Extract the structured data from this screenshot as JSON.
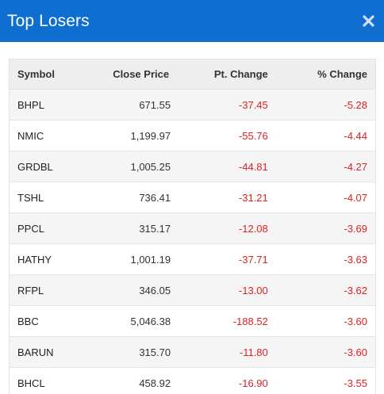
{
  "header": {
    "title": "Top Losers",
    "close_icon": "close-icon"
  },
  "colors": {
    "header_bg": "#0e6fd1",
    "negative": "#e02020",
    "row_alt": "#f5f5f5"
  },
  "table": {
    "columns": [
      "Symbol",
      "Close Price",
      "Pt. Change",
      "% Change"
    ],
    "rows": [
      {
        "symbol": "BHPL",
        "close": "671.55",
        "pt": "-37.45",
        "pct": "-5.28"
      },
      {
        "symbol": "NMIC",
        "close": "1,199.97",
        "pt": "-55.76",
        "pct": "-4.44"
      },
      {
        "symbol": "GRDBL",
        "close": "1,005.25",
        "pt": "-44.81",
        "pct": "-4.27"
      },
      {
        "symbol": "TSHL",
        "close": "736.41",
        "pt": "-31.21",
        "pct": "-4.07"
      },
      {
        "symbol": "PPCL",
        "close": "315.17",
        "pt": "-12.08",
        "pct": "-3.69"
      },
      {
        "symbol": "HATHY",
        "close": "1,001.19",
        "pt": "-37.71",
        "pct": "-3.63"
      },
      {
        "symbol": "RFPL",
        "close": "346.05",
        "pt": "-13.00",
        "pct": "-3.62"
      },
      {
        "symbol": "BBC",
        "close": "5,046.38",
        "pt": "-188.52",
        "pct": "-3.60"
      },
      {
        "symbol": "BARUN",
        "close": "315.70",
        "pt": "-11.80",
        "pct": "-3.60"
      },
      {
        "symbol": "BHCL",
        "close": "458.92",
        "pt": "-16.90",
        "pct": "-3.55"
      }
    ]
  }
}
